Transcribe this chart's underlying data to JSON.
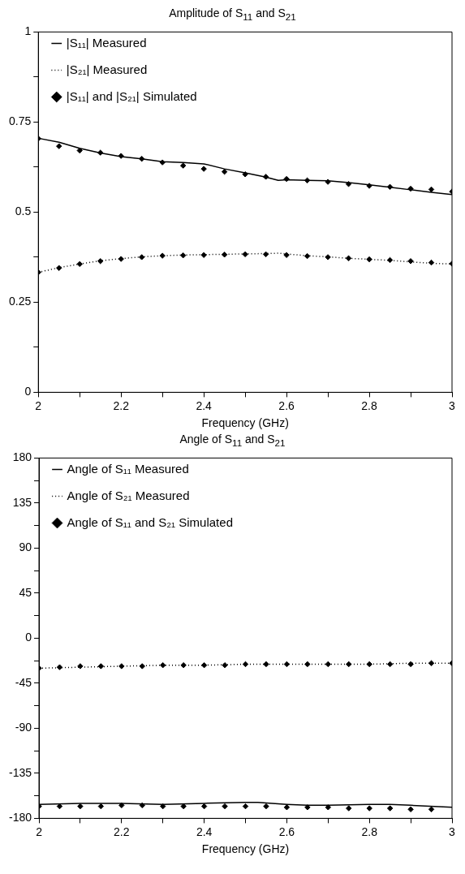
{
  "chart_data": [
    {
      "type": "line",
      "title": "Amplitude of S$_{11}$ and S$_{21}$",
      "xlabel": "Frequency (GHz)",
      "xlim": [
        2,
        3
      ],
      "xticks": [
        2,
        {
          "value": 2.1,
          "label": null
        },
        2.2,
        {
          "value": 2.3,
          "label": null
        },
        2.4,
        {
          "value": 2.5,
          "label": null
        },
        2.6,
        {
          "value": 2.7,
          "label": null
        },
        2.8,
        {
          "value": 2.9,
          "label": null
        },
        3
      ],
      "ylim": [
        0,
        1
      ],
      "yticks": [
        0,
        {
          "value": 0.125,
          "label": null
        },
        0.25,
        {
          "value": 0.375,
          "label": null
        },
        0.5,
        {
          "value": 0.625,
          "label": null
        },
        0.75,
        {
          "value": 0.875,
          "label": null
        },
        1
      ],
      "grid": false,
      "legend": "top",
      "series": [
        {
          "name": "|S₁₁| Measured",
          "color": "#000000",
          "line_style": "solid",
          "marker": "none",
          "x": [
            2,
            2.05,
            2.1,
            2.15,
            2.2,
            2.25,
            2.3,
            2.35,
            2.4,
            2.45,
            2.5,
            2.55,
            2.58,
            2.6,
            2.65,
            2.7,
            2.75,
            2.8,
            2.85,
            2.9,
            2.95,
            3
          ],
          "values": [
            0.705,
            0.694,
            0.677,
            0.664,
            0.654,
            0.648,
            0.64,
            0.638,
            0.634,
            0.62,
            0.609,
            0.597,
            0.588,
            0.59,
            0.588,
            0.587,
            0.582,
            0.576,
            0.569,
            0.562,
            0.555,
            0.549
          ]
        },
        {
          "name": "|S₂₁| Measured",
          "color": "#000000",
          "line_style": "dotted",
          "marker": "none",
          "x": [
            2,
            2.05,
            2.1,
            2.15,
            2.2,
            2.25,
            2.3,
            2.35,
            2.4,
            2.45,
            2.5,
            2.55,
            2.58,
            2.6,
            2.65,
            2.7,
            2.75,
            2.8,
            2.85,
            2.9,
            2.95,
            3
          ],
          "values": [
            0.333,
            0.346,
            0.356,
            0.365,
            0.371,
            0.376,
            0.379,
            0.381,
            0.382,
            0.383,
            0.384,
            0.385,
            0.386,
            0.384,
            0.379,
            0.376,
            0.372,
            0.369,
            0.366,
            0.362,
            0.358,
            0.356
          ]
        },
        {
          "name": "|S₁₁| and |S₂₁| Simulated",
          "type": "scatter",
          "color": "#000000",
          "marker": "diamond",
          "x": [
            2,
            2.05,
            2.1,
            2.15,
            2.2,
            2.25,
            2.3,
            2.35,
            2.4,
            2.45,
            2.5,
            2.55,
            2.6,
            2.65,
            2.7,
            2.75,
            2.8,
            2.85,
            2.9,
            2.95,
            3
          ],
          "values": [
            0.704,
            0.683,
            0.671,
            0.665,
            0.656,
            0.648,
            0.638,
            0.629,
            0.62,
            0.612,
            0.605,
            0.598,
            0.592,
            0.588,
            0.584,
            0.578,
            0.573,
            0.57,
            0.565,
            0.563,
            0.557
          ]
        },
        {
          "type": "scatter",
          "color": "#000000",
          "marker": "diamond",
          "x": [
            2,
            2.05,
            2.1,
            2.15,
            2.2,
            2.25,
            2.3,
            2.35,
            2.4,
            2.45,
            2.5,
            2.55,
            2.6,
            2.65,
            2.7,
            2.75,
            2.8,
            2.85,
            2.9,
            2.95,
            3
          ],
          "values": [
            0.333,
            0.345,
            0.356,
            0.364,
            0.37,
            0.375,
            0.379,
            0.38,
            0.381,
            0.382,
            0.383,
            0.383,
            0.381,
            0.378,
            0.375,
            0.372,
            0.369,
            0.367,
            0.364,
            0.36,
            0.357
          ]
        }
      ]
    },
    {
      "type": "line",
      "title": "Angle of S$_{11}$ and S$_{21}$",
      "xlabel": "Frequency (GHz)",
      "xlim": [
        2,
        3
      ],
      "xticks": [
        2,
        {
          "value": 2.1,
          "label": null
        },
        2.2,
        {
          "value": 2.3,
          "label": null
        },
        2.4,
        {
          "value": 2.5,
          "label": null
        },
        2.6,
        {
          "value": 2.7,
          "label": null
        },
        2.8,
        {
          "value": 2.9,
          "label": null
        },
        3
      ],
      "ylim": [
        -180,
        180
      ],
      "yticks": [
        -180,
        {
          "value": -157.5,
          "label": null
        },
        -135,
        {
          "value": -112.5,
          "label": null
        },
        -90,
        {
          "value": -67.5,
          "label": null
        },
        -45,
        {
          "value": -22.5,
          "label": null
        },
        0,
        {
          "value": 22.5,
          "label": null
        },
        45,
        {
          "value": 67.5,
          "label": null
        },
        90,
        {
          "value": 112.5,
          "label": null
        },
        135,
        {
          "value": 157.5,
          "label": null
        },
        180
      ],
      "grid": false,
      "legend": "top",
      "series": [
        {
          "name": "Angle of S₁₁ Measured",
          "color": "#000000",
          "line_style": "solid",
          "marker": "none",
          "x": [
            2,
            2.1,
            2.2,
            2.3,
            2.4,
            2.5,
            2.53,
            2.6,
            2.65,
            2.7,
            2.8,
            2.85,
            2.9,
            3
          ],
          "values": [
            -166,
            -165,
            -165,
            -166,
            -165,
            -164,
            -164,
            -166,
            -167,
            -167,
            -166,
            -166,
            -167,
            -169
          ]
        },
        {
          "name": "Angle of S₂₁ Measured",
          "color": "#000000",
          "line_style": "dotted",
          "marker": "none",
          "x": [
            2,
            2.1,
            2.2,
            2.3,
            2.4,
            2.5,
            2.6,
            2.7,
            2.8,
            2.9,
            3
          ],
          "values": [
            -30,
            -29,
            -28,
            -27,
            -27,
            -26,
            -26,
            -26,
            -26,
            -25,
            -25
          ]
        },
        {
          "name": "Angle of S₁₁ and S₂₁ Simulated",
          "type": "scatter",
          "color": "#000000",
          "marker": "diamond",
          "x": [
            2,
            2.05,
            2.1,
            2.15,
            2.2,
            2.25,
            2.3,
            2.35,
            2.4,
            2.45,
            2.5,
            2.55,
            2.6,
            2.65,
            2.7,
            2.75,
            2.8,
            2.85,
            2.9,
            2.95
          ],
          "values": [
            -168,
            -168,
            -168,
            -168,
            -167,
            -167,
            -168,
            -168,
            -168,
            -168,
            -168,
            -168,
            -169,
            -169,
            -169,
            -170,
            -170,
            -170,
            -171,
            -171
          ]
        },
        {
          "type": "scatter",
          "color": "#000000",
          "marker": "diamond",
          "x": [
            2,
            2.05,
            2.1,
            2.15,
            2.2,
            2.25,
            2.3,
            2.35,
            2.4,
            2.45,
            2.5,
            2.55,
            2.6,
            2.65,
            2.7,
            2.75,
            2.8,
            2.85,
            2.9,
            2.95,
            3
          ],
          "values": [
            -30,
            -29,
            -28,
            -28,
            -28,
            -28,
            -27,
            -27,
            -27,
            -27,
            -26,
            -26,
            -26,
            -26,
            -26,
            -26,
            -26,
            -26,
            -26,
            -25,
            -25
          ]
        }
      ]
    }
  ]
}
